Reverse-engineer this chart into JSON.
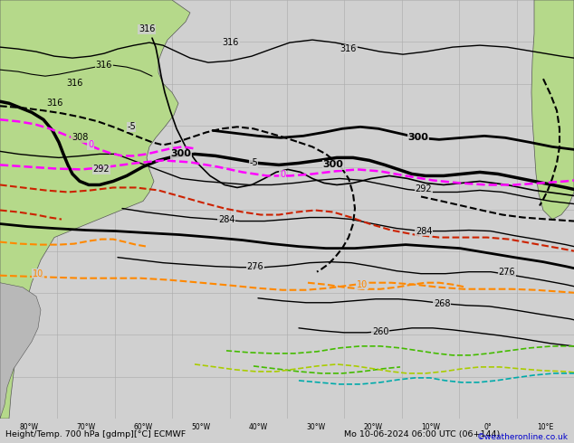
{
  "title_left": "Height/Temp. 700 hPa [gdmp][°C] ECMWF",
  "title_right": "Mo 10-06-2024 06:00 UTC (06+144)",
  "credit": "©weatheronline.co.uk",
  "background_land": "#b5d98a",
  "background_sea": "#d0d0d0",
  "grid_color": "#aaaaaa",
  "border_color": "#555555",
  "figsize": [
    6.34,
    4.9
  ],
  "dpi": 100
}
